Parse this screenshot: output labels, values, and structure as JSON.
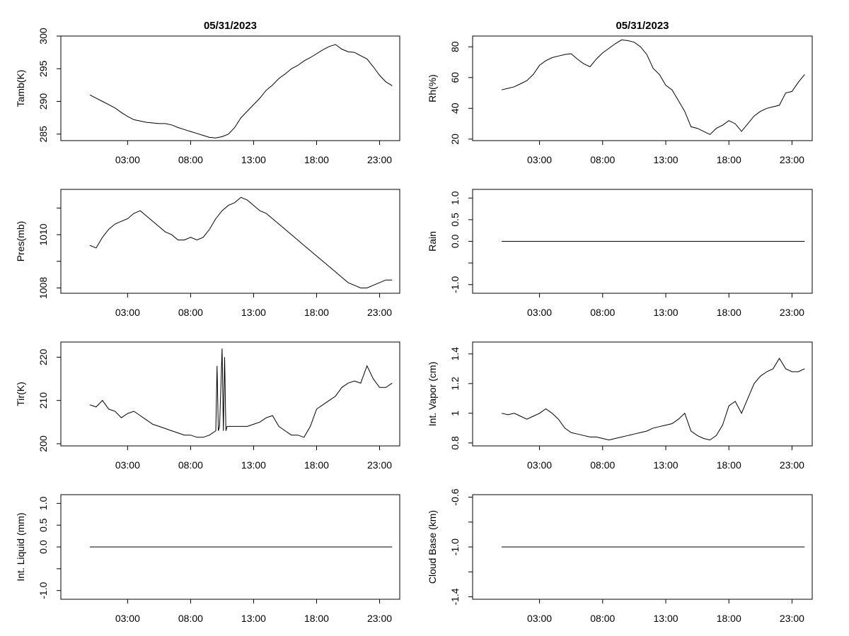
{
  "chart_data": [
    {
      "type": "line",
      "title": "05/31/2023",
      "ylabel": "Tamb(K)",
      "ylim": [
        284,
        300
      ],
      "yticks": [
        285,
        290,
        295,
        300
      ],
      "xlim": [
        -2.3,
        24.6
      ],
      "xticks": [
        3,
        8,
        13,
        18,
        23
      ],
      "xtick_labels": [
        "03:00",
        "08:00",
        "13:00",
        "18:00",
        "23:00"
      ],
      "series": [
        {
          "x": [
            0,
            0.5,
            1,
            1.5,
            2,
            2.5,
            3,
            3.5,
            4,
            4.5,
            5,
            5.5,
            6,
            6.5,
            7,
            7.5,
            8,
            8.5,
            9,
            9.5,
            10,
            10.5,
            11,
            11.5,
            12,
            12.5,
            13,
            13.5,
            14,
            14.5,
            15,
            15.5,
            16,
            16.5,
            17,
            17.5,
            18,
            18.5,
            19,
            19.5,
            20,
            20.5,
            21,
            21.5,
            22,
            22.5,
            23,
            23.5,
            24
          ],
          "y": [
            291,
            290.5,
            290,
            289.5,
            289,
            288.3,
            287.7,
            287.2,
            287,
            286.8,
            286.7,
            286.6,
            286.6,
            286.4,
            286,
            285.7,
            285.4,
            285.1,
            284.8,
            284.5,
            284.4,
            284.6,
            285,
            286,
            287.5,
            288.5,
            289.5,
            290.5,
            291.7,
            292.5,
            293.5,
            294.2,
            295,
            295.5,
            296.2,
            296.7,
            297.3,
            297.9,
            298.4,
            298.7,
            298,
            297.6,
            297.5,
            297,
            296.5,
            295.3,
            294,
            293,
            292.4
          ]
        }
      ]
    },
    {
      "type": "line",
      "title": "05/31/2023",
      "ylabel": "Rh(%)",
      "ylim": [
        19,
        87
      ],
      "yticks": [
        20,
        40,
        60,
        80
      ],
      "xlim": [
        -2.3,
        24.6
      ],
      "xticks": [
        3,
        8,
        13,
        18,
        23
      ],
      "xtick_labels": [
        "03:00",
        "08:00",
        "13:00",
        "18:00",
        "23:00"
      ],
      "series": [
        {
          "x": [
            0,
            0.5,
            1,
            1.5,
            2,
            2.5,
            3,
            3.5,
            4,
            4.5,
            5,
            5.5,
            6,
            6.5,
            7,
            7.5,
            8,
            8.5,
            9,
            9.5,
            10,
            10.5,
            11,
            11.5,
            12,
            12.5,
            13,
            13.5,
            14,
            14.5,
            15,
            15.5,
            16,
            16.5,
            17,
            17.5,
            18,
            18.5,
            19,
            19.5,
            20,
            20.5,
            21,
            21.5,
            22,
            22.5,
            23,
            23.5,
            24
          ],
          "y": [
            52,
            53,
            54,
            56,
            58,
            62,
            68,
            71,
            73,
            74,
            75,
            75.5,
            72,
            69,
            67,
            72,
            76,
            79,
            82,
            84.5,
            84,
            83,
            80,
            75,
            66,
            62,
            55,
            52,
            45,
            38,
            28,
            27,
            25,
            23,
            27,
            29,
            32,
            30,
            25,
            30,
            35,
            38,
            40,
            41,
            42,
            50,
            51,
            57,
            62
          ]
        }
      ]
    },
    {
      "type": "line",
      "title": "",
      "ylabel": "Pres(mb)",
      "ylim": [
        1007.8,
        1011.7
      ],
      "yticks": [
        1008,
        1010
      ],
      "ytick_extra": [
        1009,
        1011
      ],
      "xlim": [
        -2.3,
        24.6
      ],
      "xticks": [
        3,
        8,
        13,
        18,
        23
      ],
      "xtick_labels": [
        "03:00",
        "08:00",
        "13:00",
        "18:00",
        "23:00"
      ],
      "series": [
        {
          "x": [
            0,
            0.5,
            1,
            1.5,
            2,
            2.5,
            3,
            3.5,
            4,
            4.5,
            5,
            5.5,
            6,
            6.5,
            7,
            7.5,
            8,
            8.5,
            9,
            9.5,
            10,
            10.5,
            11,
            11.5,
            12,
            12.5,
            13,
            13.5,
            14,
            14.5,
            15,
            15.5,
            16,
            16.5,
            17,
            17.5,
            18,
            18.5,
            19,
            19.5,
            20,
            20.5,
            21,
            21.5,
            22,
            22.5,
            23,
            23.5,
            24
          ],
          "y": [
            1009.6,
            1009.5,
            1009.9,
            1010.2,
            1010.4,
            1010.5,
            1010.6,
            1010.8,
            1010.9,
            1010.7,
            1010.5,
            1010.3,
            1010.1,
            1010,
            1009.8,
            1009.8,
            1009.9,
            1009.8,
            1009.9,
            1010.2,
            1010.6,
            1010.9,
            1011.1,
            1011.2,
            1011.4,
            1011.3,
            1011.1,
            1010.9,
            1010.8,
            1010.6,
            1010.4,
            1010.2,
            1010,
            1009.8,
            1009.6,
            1009.4,
            1009.2,
            1009,
            1008.8,
            1008.6,
            1008.4,
            1008.2,
            1008.1,
            1008,
            1008,
            1008.1,
            1008.2,
            1008.3,
            1008.3
          ]
        }
      ]
    },
    {
      "type": "line",
      "title": "",
      "ylabel": "Rain",
      "ylim": [
        -1.2,
        1.2
      ],
      "yticks": [
        -1,
        0,
        0.5,
        1
      ],
      "ytick_extra": [
        -0.5
      ],
      "ytick_labels": [
        "-1.0",
        "0.0",
        "0.5",
        "1.0"
      ],
      "xlim": [
        -2.3,
        24.6
      ],
      "xticks": [
        3,
        8,
        13,
        18,
        23
      ],
      "xtick_labels": [
        "03:00",
        "08:00",
        "13:00",
        "18:00",
        "23:00"
      ],
      "series": [
        {
          "x": [
            0,
            24
          ],
          "y": [
            0,
            0
          ]
        }
      ]
    },
    {
      "type": "line",
      "title": "",
      "ylabel": "Tir(K)",
      "ylim": [
        199.5,
        223.5
      ],
      "yticks": [
        200,
        210,
        220
      ],
      "xlim": [
        -2.3,
        24.6
      ],
      "xticks": [
        3,
        8,
        13,
        18,
        23
      ],
      "xtick_labels": [
        "03:00",
        "08:00",
        "13:00",
        "18:00",
        "23:00"
      ],
      "series": [
        {
          "x": [
            0,
            0.5,
            1,
            1.5,
            2,
            2.5,
            3,
            3.5,
            4,
            4.5,
            5,
            5.5,
            6,
            6.5,
            7,
            7.5,
            8,
            8.5,
            9,
            9.5,
            10,
            10.1,
            10.2,
            10.3,
            10.5,
            10.6,
            10.7,
            10.8,
            10.9,
            11,
            11.5,
            12,
            12.5,
            13,
            13.5,
            14,
            14.5,
            15,
            15.5,
            16,
            16.5,
            17,
            17.5,
            18,
            18.5,
            19,
            19.5,
            20,
            20.5,
            21,
            21.5,
            22,
            22.5,
            23,
            23.5,
            24
          ],
          "y": [
            209,
            208.5,
            210,
            208,
            207.5,
            206,
            207,
            207.5,
            206.5,
            205.5,
            204.5,
            204,
            203.5,
            203,
            202.5,
            202,
            202,
            201.5,
            201.5,
            202,
            203,
            218,
            203,
            204,
            222,
            203,
            220,
            203,
            204,
            204,
            204,
            204,
            204,
            204.5,
            205,
            206,
            206.5,
            204,
            203,
            202,
            202,
            201.5,
            204,
            208,
            209,
            210,
            211,
            213,
            214,
            214.5,
            214,
            218,
            215,
            213,
            213,
            214
          ]
        }
      ]
    },
    {
      "type": "line",
      "title": "",
      "ylabel": "Int. Vapor (cm)",
      "ylim": [
        0.78,
        1.48
      ],
      "yticks": [
        0.8,
        1.0,
        1.2,
        1.4
      ],
      "xlim": [
        -2.3,
        24.6
      ],
      "xticks": [
        3,
        8,
        13,
        18,
        23
      ],
      "xtick_labels": [
        "03:00",
        "08:00",
        "13:00",
        "18:00",
        "23:00"
      ],
      "series": [
        {
          "x": [
            0,
            0.5,
            1,
            1.5,
            2,
            2.5,
            3,
            3.5,
            4,
            4.5,
            5,
            5.5,
            6,
            6.5,
            7,
            7.5,
            8,
            8.5,
            9,
            9.5,
            10,
            10.5,
            11,
            11.5,
            12,
            12.5,
            13,
            13.5,
            14,
            14.5,
            15,
            15.5,
            16,
            16.5,
            17,
            17.5,
            18,
            18.5,
            19,
            19.5,
            20,
            20.5,
            21,
            21.5,
            22,
            22.5,
            23,
            23.5,
            24
          ],
          "y": [
            1.0,
            0.99,
            1.0,
            0.98,
            0.96,
            0.98,
            1.0,
            1.03,
            1.0,
            0.96,
            0.9,
            0.87,
            0.86,
            0.85,
            0.84,
            0.84,
            0.83,
            0.82,
            0.83,
            0.84,
            0.85,
            0.86,
            0.87,
            0.88,
            0.9,
            0.91,
            0.92,
            0.93,
            0.96,
            1.0,
            0.88,
            0.85,
            0.83,
            0.82,
            0.85,
            0.92,
            1.05,
            1.08,
            1.0,
            1.1,
            1.2,
            1.25,
            1.28,
            1.3,
            1.37,
            1.3,
            1.28,
            1.28,
            1.3
          ]
        }
      ]
    },
    {
      "type": "line",
      "title": "",
      "ylabel": "Int. Liquid (mm)",
      "ylim": [
        -1.2,
        1.2
      ],
      "yticks": [
        -1,
        0,
        0.5,
        1
      ],
      "ytick_extra": [
        -0.5
      ],
      "ytick_labels": [
        "-1.0",
        "0.0",
        "0.5",
        "1.0"
      ],
      "xlim": [
        -2.3,
        24.6
      ],
      "xticks": [
        3,
        8,
        13,
        18,
        23
      ],
      "xtick_labels": [
        "03:00",
        "08:00",
        "13:00",
        "18:00",
        "23:00"
      ],
      "series": [
        {
          "x": [
            0,
            24
          ],
          "y": [
            0,
            0
          ]
        }
      ]
    },
    {
      "type": "line",
      "title": "",
      "ylabel": "Cloud Base (km)",
      "ylim": [
        -1.42,
        -0.58
      ],
      "yticks": [
        -1.4,
        -1.0,
        -0.6
      ],
      "ytick_extra": [
        -1.2,
        -0.8
      ],
      "ytick_labels": [
        "-1.4",
        "-1.0",
        "-0.6"
      ],
      "xlim": [
        -2.3,
        24.6
      ],
      "xticks": [
        3,
        8,
        13,
        18,
        23
      ],
      "xtick_labels": [
        "03:00",
        "08:00",
        "13:00",
        "18:00",
        "23:00"
      ],
      "series": [
        {
          "x": [
            0,
            24
          ],
          "y": [
            -1,
            -1
          ]
        }
      ]
    }
  ]
}
